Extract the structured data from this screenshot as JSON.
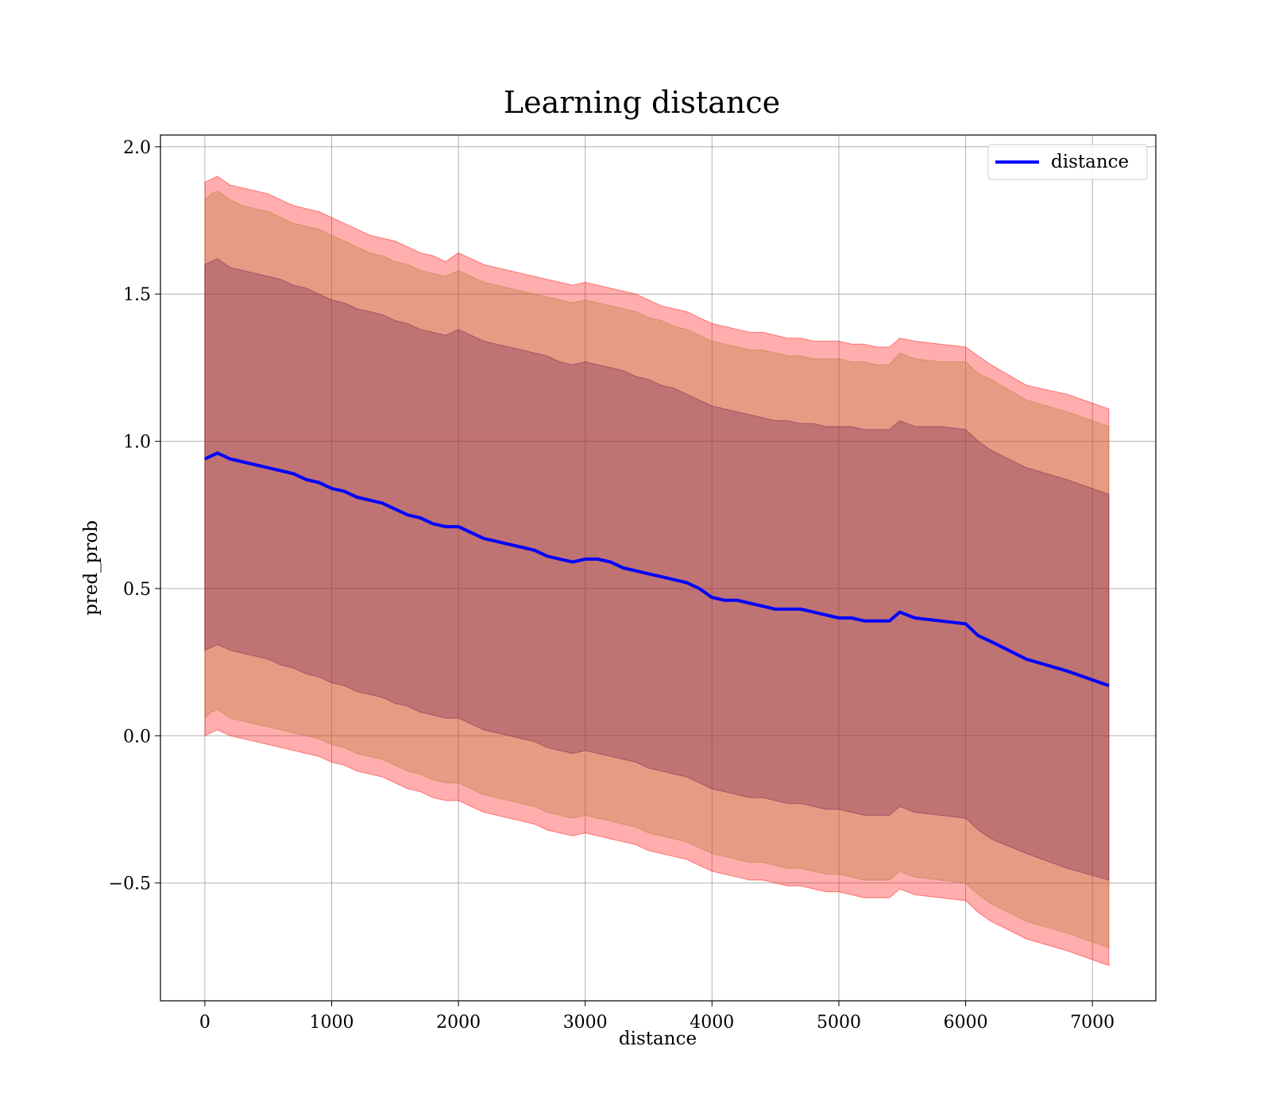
{
  "chart_data": {
    "type": "line",
    "title": "Learning distance",
    "xlabel": "distance",
    "ylabel": "pred_prob",
    "xlim": [
      -350,
      7500
    ],
    "ylim": [
      -0.9,
      2.04
    ],
    "xticks": [
      0,
      1000,
      2000,
      3000,
      4000,
      5000,
      6000,
      7000
    ],
    "yticks": [
      -0.5,
      0.0,
      0.5,
      1.0,
      1.5,
      2.0
    ],
    "xtick_labels": [
      "0",
      "1000",
      "2000",
      "3000",
      "4000",
      "5000",
      "6000",
      "7000"
    ],
    "ytick_labels": [
      "−0.5",
      "0.0",
      "0.5",
      "1.0",
      "1.5",
      "2.0"
    ],
    "grid": true,
    "legend": {
      "position": "top-right",
      "entries": [
        "distance"
      ]
    },
    "colors": {
      "line": "#0000ff",
      "outer_band": "#ff0000",
      "middle_band": "#b4772e",
      "inner_band": "#6b1f4d"
    },
    "series": [
      {
        "name": "distance",
        "x": [
          0,
          50,
          100,
          200,
          300,
          400,
          500,
          600,
          700,
          800,
          900,
          1000,
          1100,
          1200,
          1300,
          1400,
          1500,
          1600,
          1700,
          1800,
          1900,
          2000,
          2100,
          2200,
          2300,
          2400,
          2500,
          2600,
          2700,
          2800,
          2900,
          3000,
          3100,
          3200,
          3300,
          3400,
          3500,
          3600,
          3700,
          3800,
          3900,
          4000,
          4100,
          4200,
          4300,
          4400,
          4500,
          4600,
          4700,
          4800,
          4900,
          5000,
          5100,
          5200,
          5300,
          5400,
          5480,
          5600,
          5800,
          6000,
          6100,
          6200,
          6480,
          6800,
          7130
        ],
        "y": [
          0.94,
          0.95,
          0.96,
          0.94,
          0.93,
          0.92,
          0.91,
          0.9,
          0.89,
          0.87,
          0.86,
          0.84,
          0.83,
          0.81,
          0.8,
          0.79,
          0.77,
          0.75,
          0.74,
          0.72,
          0.71,
          0.71,
          0.69,
          0.67,
          0.66,
          0.65,
          0.64,
          0.63,
          0.61,
          0.6,
          0.59,
          0.6,
          0.6,
          0.59,
          0.57,
          0.56,
          0.55,
          0.54,
          0.53,
          0.52,
          0.5,
          0.47,
          0.46,
          0.46,
          0.45,
          0.44,
          0.43,
          0.43,
          0.43,
          0.42,
          0.41,
          0.4,
          0.4,
          0.39,
          0.39,
          0.39,
          0.42,
          0.4,
          0.39,
          0.38,
          0.34,
          0.32,
          0.26,
          0.22,
          0.17
        ]
      }
    ],
    "bands": [
      {
        "role": "outer",
        "upper": [
          1.88,
          1.89,
          1.9,
          1.87,
          1.86,
          1.85,
          1.84,
          1.82,
          1.8,
          1.79,
          1.78,
          1.76,
          1.74,
          1.72,
          1.7,
          1.69,
          1.68,
          1.66,
          1.64,
          1.63,
          1.61,
          1.64,
          1.62,
          1.6,
          1.59,
          1.58,
          1.57,
          1.56,
          1.55,
          1.54,
          1.53,
          1.54,
          1.53,
          1.52,
          1.51,
          1.5,
          1.48,
          1.46,
          1.45,
          1.44,
          1.42,
          1.4,
          1.39,
          1.38,
          1.37,
          1.37,
          1.36,
          1.35,
          1.35,
          1.34,
          1.34,
          1.34,
          1.33,
          1.33,
          1.32,
          1.32,
          1.35,
          1.34,
          1.33,
          1.32,
          1.29,
          1.26,
          1.19,
          1.16,
          1.11
        ],
        "lower": [
          0.0,
          0.01,
          0.02,
          0.0,
          -0.01,
          -0.02,
          -0.03,
          -0.04,
          -0.05,
          -0.06,
          -0.07,
          -0.09,
          -0.1,
          -0.12,
          -0.13,
          -0.14,
          -0.16,
          -0.18,
          -0.19,
          -0.21,
          -0.22,
          -0.22,
          -0.24,
          -0.26,
          -0.27,
          -0.28,
          -0.29,
          -0.3,
          -0.32,
          -0.33,
          -0.34,
          -0.33,
          -0.34,
          -0.35,
          -0.36,
          -0.37,
          -0.39,
          -0.4,
          -0.41,
          -0.42,
          -0.44,
          -0.46,
          -0.47,
          -0.48,
          -0.49,
          -0.49,
          -0.5,
          -0.51,
          -0.51,
          -0.52,
          -0.53,
          -0.53,
          -0.54,
          -0.55,
          -0.55,
          -0.55,
          -0.52,
          -0.54,
          -0.55,
          -0.56,
          -0.6,
          -0.63,
          -0.69,
          -0.73,
          -0.78
        ]
      },
      {
        "role": "middle",
        "upper": [
          1.82,
          1.84,
          1.85,
          1.82,
          1.8,
          1.79,
          1.78,
          1.76,
          1.74,
          1.73,
          1.72,
          1.7,
          1.68,
          1.66,
          1.64,
          1.63,
          1.61,
          1.6,
          1.58,
          1.57,
          1.56,
          1.58,
          1.56,
          1.54,
          1.53,
          1.52,
          1.51,
          1.5,
          1.49,
          1.48,
          1.47,
          1.48,
          1.47,
          1.46,
          1.45,
          1.44,
          1.42,
          1.41,
          1.39,
          1.38,
          1.36,
          1.34,
          1.33,
          1.32,
          1.31,
          1.31,
          1.3,
          1.29,
          1.29,
          1.28,
          1.28,
          1.28,
          1.27,
          1.27,
          1.26,
          1.26,
          1.3,
          1.28,
          1.27,
          1.27,
          1.23,
          1.21,
          1.14,
          1.1,
          1.05
        ],
        "lower": [
          0.06,
          0.08,
          0.09,
          0.06,
          0.05,
          0.04,
          0.03,
          0.02,
          0.01,
          0.0,
          -0.01,
          -0.03,
          -0.04,
          -0.06,
          -0.07,
          -0.08,
          -0.1,
          -0.12,
          -0.13,
          -0.15,
          -0.16,
          -0.16,
          -0.18,
          -0.2,
          -0.21,
          -0.22,
          -0.23,
          -0.24,
          -0.26,
          -0.27,
          -0.28,
          -0.27,
          -0.28,
          -0.29,
          -0.3,
          -0.31,
          -0.33,
          -0.34,
          -0.35,
          -0.36,
          -0.38,
          -0.4,
          -0.41,
          -0.42,
          -0.43,
          -0.43,
          -0.44,
          -0.45,
          -0.45,
          -0.46,
          -0.47,
          -0.47,
          -0.48,
          -0.49,
          -0.49,
          -0.49,
          -0.46,
          -0.48,
          -0.49,
          -0.5,
          -0.54,
          -0.57,
          -0.63,
          -0.67,
          -0.72
        ]
      },
      {
        "role": "inner",
        "upper": [
          1.6,
          1.61,
          1.62,
          1.59,
          1.58,
          1.57,
          1.56,
          1.55,
          1.53,
          1.52,
          1.5,
          1.48,
          1.47,
          1.45,
          1.44,
          1.43,
          1.41,
          1.4,
          1.38,
          1.37,
          1.36,
          1.38,
          1.36,
          1.34,
          1.33,
          1.32,
          1.31,
          1.3,
          1.29,
          1.27,
          1.26,
          1.27,
          1.26,
          1.25,
          1.24,
          1.22,
          1.21,
          1.19,
          1.18,
          1.16,
          1.14,
          1.12,
          1.11,
          1.1,
          1.09,
          1.08,
          1.07,
          1.07,
          1.06,
          1.06,
          1.05,
          1.05,
          1.05,
          1.04,
          1.04,
          1.04,
          1.07,
          1.05,
          1.05,
          1.04,
          1.0,
          0.97,
          0.91,
          0.87,
          0.82
        ],
        "lower": [
          0.29,
          0.3,
          0.31,
          0.29,
          0.28,
          0.27,
          0.26,
          0.24,
          0.23,
          0.21,
          0.2,
          0.18,
          0.17,
          0.15,
          0.14,
          0.13,
          0.11,
          0.1,
          0.08,
          0.07,
          0.06,
          0.06,
          0.04,
          0.02,
          0.01,
          0.0,
          -0.01,
          -0.02,
          -0.04,
          -0.05,
          -0.06,
          -0.05,
          -0.06,
          -0.07,
          -0.08,
          -0.09,
          -0.11,
          -0.12,
          -0.13,
          -0.14,
          -0.16,
          -0.18,
          -0.19,
          -0.2,
          -0.21,
          -0.21,
          -0.22,
          -0.23,
          -0.23,
          -0.24,
          -0.25,
          -0.25,
          -0.26,
          -0.27,
          -0.27,
          -0.27,
          -0.24,
          -0.26,
          -0.27,
          -0.28,
          -0.32,
          -0.35,
          -0.4,
          -0.45,
          -0.49
        ]
      }
    ]
  }
}
